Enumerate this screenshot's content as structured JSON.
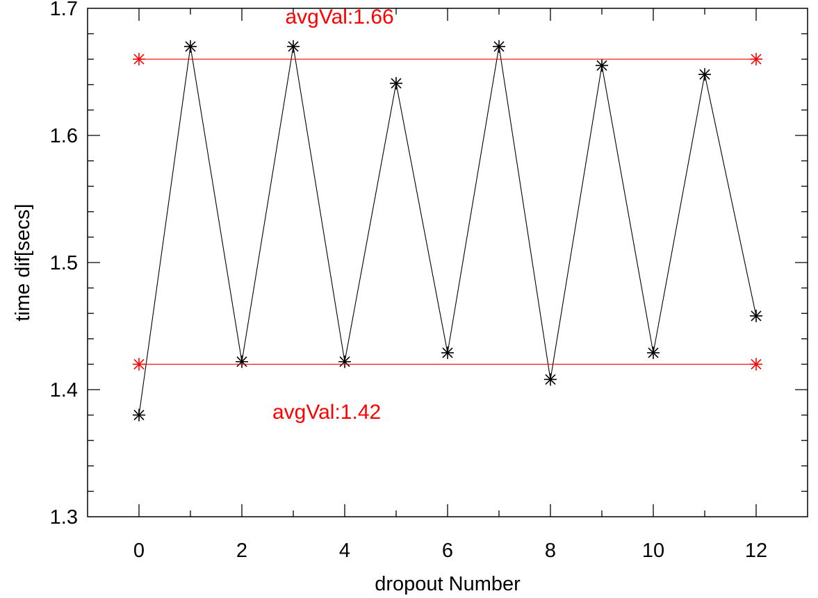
{
  "chart_data": {
    "type": "line",
    "xlabel": "dropout Number",
    "ylabel": "time dif[secs]",
    "xlim": [
      -1,
      13
    ],
    "ylim": [
      1.3,
      1.7
    ],
    "x_ticks": [
      0,
      2,
      4,
      6,
      8,
      10,
      12
    ],
    "x_tick_labels": [
      "0",
      "2",
      "4",
      "6",
      "8",
      "10",
      "12"
    ],
    "y_ticks": [
      1.3,
      1.4,
      1.5,
      1.6,
      1.7
    ],
    "y_tick_labels": [
      "1.3",
      "1.4",
      "1.5",
      "1.6",
      "1.7"
    ],
    "grid": false,
    "marker": "asterisk",
    "series": [
      {
        "color": "#000000",
        "x": [
          0,
          1,
          2,
          3,
          4,
          5,
          6,
          7,
          8,
          9,
          10,
          11,
          12
        ],
        "y": [
          1.38,
          1.67,
          1.422,
          1.67,
          1.422,
          1.641,
          1.429,
          1.67,
          1.408,
          1.655,
          1.429,
          1.648,
          1.458
        ]
      },
      {
        "color": "#ff0000",
        "x": [
          0,
          12
        ],
        "y": [
          1.66,
          1.66
        ]
      },
      {
        "color": "#ff0000",
        "x": [
          0,
          12
        ],
        "y": [
          1.42,
          1.42
        ]
      }
    ],
    "annotations": [
      {
        "text": "avgVal:1.66",
        "x": 3.9,
        "y": 1.688,
        "color": "#ff0000"
      },
      {
        "text": "avgVal:1.42",
        "x": 3.65,
        "y": 1.377,
        "color": "#ff0000"
      }
    ]
  }
}
